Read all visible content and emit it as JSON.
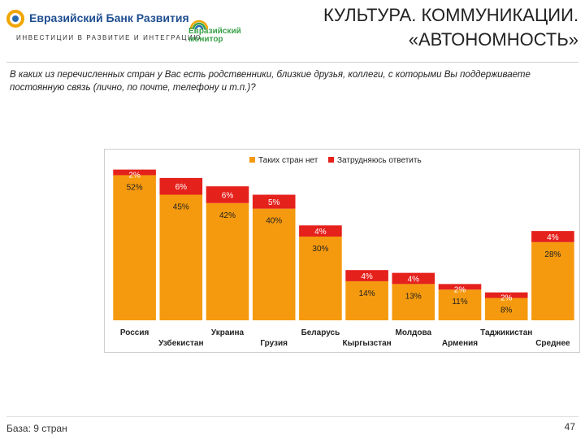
{
  "header": {
    "bank_name": "Евразийский Банк Развития",
    "bank_tagline": "ИНВЕСТИЦИИ В РАЗВИТИЕ И ИНТЕГРАЦИЮ",
    "monitor_line1": "Евразийский",
    "monitor_line2": "монитор",
    "title_line1": "КУЛЬТУРА. КОММУНИКАЦИИ.",
    "title_line2": "«АВТОНОМНОСТЬ»"
  },
  "question": "В каких из перечисленных стран у Вас есть родственники, близкие друзья, коллеги, с которыми Вы поддерживаете постоянную связь (лично, по почте, телефону и т.п.)?",
  "footer": {
    "base": "База: 9 стран",
    "page": "47"
  },
  "colors": {
    "none": "#f59a0e",
    "difficult": "#e5211c"
  },
  "chart_data": {
    "type": "bar",
    "stacked": true,
    "ylim": [
      0,
      100
    ],
    "categories": [
      "Россия",
      "Узбекистан",
      "Украина",
      "Грузия",
      "Беларусь",
      "Кыргызстан",
      "Молдова",
      "Армения",
      "Таджикистан",
      "Среднее"
    ],
    "category_labels": [
      "Россия",
      "Узбекистан",
      "Украина",
      "Грузия",
      "Беларусь",
      "Кыргызстан",
      "Молдова",
      "Армения",
      "Таджикистан",
      "Среднее"
    ],
    "series": [
      {
        "name": "Таких стран нет",
        "values": [
          52,
          45,
          42,
          40,
          30,
          14,
          13,
          11,
          8,
          28
        ],
        "labels": [
          "52%",
          "45%",
          "42%",
          "40%",
          "30%",
          "14%",
          "13%",
          "11%",
          "8%",
          "28%"
        ]
      },
      {
        "name": "Затрудняюсь ответить",
        "values": [
          2,
          6,
          6,
          5,
          4,
          4,
          4,
          2,
          2,
          4
        ],
        "labels": [
          "2%",
          "6%",
          "6%",
          "5%",
          "4%",
          "4%",
          "4%",
          "2%",
          "2%",
          "4%"
        ]
      }
    ],
    "legend": [
      "Таких стран нет",
      "Затрудняюсь ответить"
    ],
    "legend_position": "top"
  }
}
